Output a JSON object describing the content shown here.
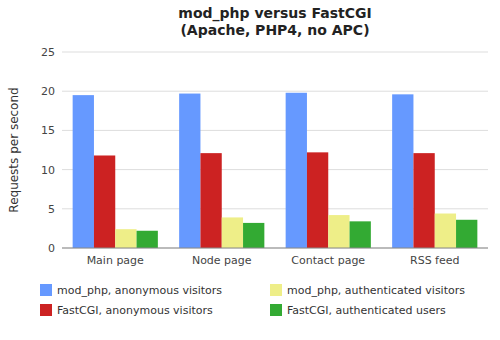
{
  "chart_data": {
    "type": "bar",
    "title": "mod_php versus FastCGI\n(Apache, PHP4, no APC)",
    "categories": [
      "Main page",
      "Node page",
      "Contact page",
      "RSS feed"
    ],
    "series": [
      {
        "name": "mod_php, anonymous visitors",
        "color": "#6699FF",
        "values": [
          19.5,
          19.7,
          19.8,
          19.6
        ]
      },
      {
        "name": "FastCGI, anonymous visitors",
        "color": "#CC2222",
        "values": [
          11.8,
          12.1,
          12.2,
          12.1
        ]
      },
      {
        "name": "mod_php, authenticated visitors",
        "color": "#EEEE88",
        "values": [
          2.4,
          3.9,
          4.2,
          4.4
        ]
      },
      {
        "name": "FastCGI, authenticated users",
        "color": "#33AA33",
        "values": [
          2.2,
          3.2,
          3.4,
          3.6
        ]
      }
    ],
    "ylabel": "Requests per second",
    "ylim": [
      0,
      25
    ],
    "yticks": [
      0,
      5,
      10,
      15,
      20,
      25
    ],
    "grid": true,
    "legend": "bottom"
  }
}
